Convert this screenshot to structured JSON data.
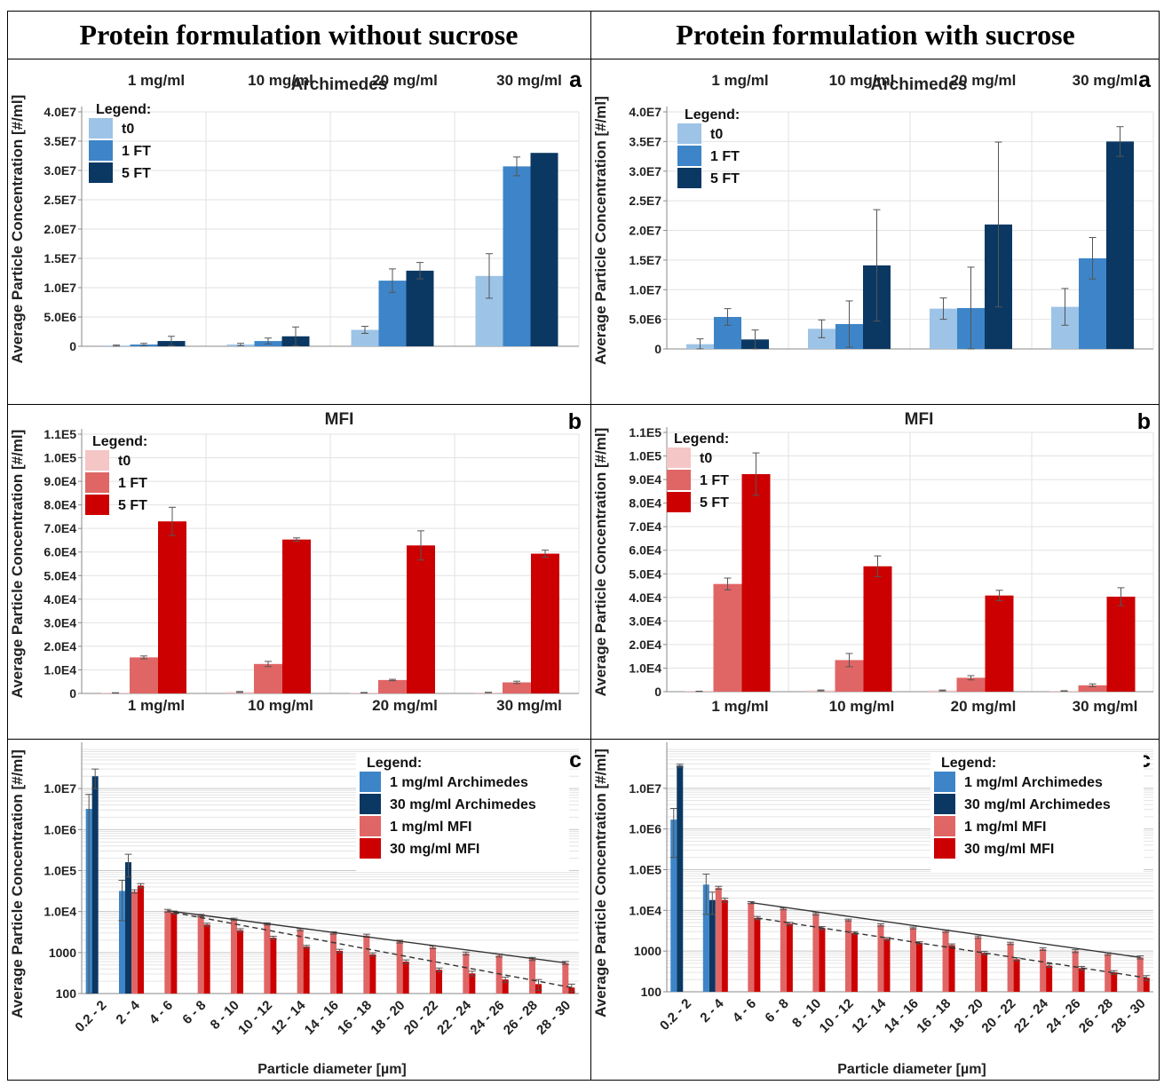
{
  "headers": {
    "left": "Protein formulation without sucrose",
    "right": "Protein formulation with sucrose"
  },
  "colors": {
    "arch_t0": "#9dc3e6",
    "arch_1ft": "#3d85c8",
    "arch_5ft": "#0b3863",
    "mfi_t0": "#f4c6c6",
    "mfi_1ft": "#e06666",
    "mfi_5ft": "#cc0000"
  },
  "chart_data": [
    {
      "id": "left-a",
      "type": "bar",
      "letter": "a",
      "title": "Archimedes",
      "ylabel": "Average Particle Concentration [#/ml]",
      "xlabel": "",
      "ylim": [
        0,
        40000000
      ],
      "scale": "linear",
      "yticks": [
        0,
        5000000,
        10000000,
        15000000,
        20000000,
        25000000,
        30000000,
        35000000,
        40000000
      ],
      "yticklabels": [
        "0",
        "5.0E6",
        "1.0E7",
        "1.5E7",
        "2.0E7",
        "2.5E7",
        "3.0E7",
        "3.5E7",
        "4.0E7"
      ],
      "categories": [
        "1 mg/ml",
        "10 mg/ml",
        "20 mg/ml",
        "30 mg/ml"
      ],
      "legend_title": "Legend:",
      "series": [
        {
          "name": "t0",
          "color": "#9dc3e6",
          "values": [
            100000,
            300000,
            2800000,
            12000000
          ],
          "errors": [
            100000,
            200000,
            600000,
            3800000
          ]
        },
        {
          "name": "1 FT",
          "color": "#3d85c8",
          "values": [
            300000,
            900000,
            11200000,
            30700000
          ],
          "errors": [
            200000,
            500000,
            2000000,
            1600000
          ]
        },
        {
          "name": "5 FT",
          "color": "#0b3863",
          "values": [
            900000,
            1700000,
            12900000,
            33000000
          ],
          "errors": [
            800000,
            1600000,
            1400000,
            0
          ]
        }
      ]
    },
    {
      "id": "right-a",
      "type": "bar",
      "letter": "a",
      "title": "Archimedes",
      "ylabel": "Average Particle Concentration [#/ml]",
      "xlabel": "",
      "ylim": [
        0,
        40000000
      ],
      "scale": "linear",
      "yticks": [
        0,
        5000000,
        10000000,
        15000000,
        20000000,
        25000000,
        30000000,
        35000000,
        40000000
      ],
      "yticklabels": [
        "0",
        "5.0E6",
        "1.0E7",
        "1.5E7",
        "2.0E7",
        "2.5E7",
        "3.0E7",
        "3.5E7",
        "4.0E7"
      ],
      "categories": [
        "1 mg/ml",
        "10 mg/ml",
        "20 mg/ml",
        "30 mg/ml"
      ],
      "legend_title": "Legend:",
      "series": [
        {
          "name": "t0",
          "color": "#9dc3e6",
          "values": [
            800000,
            3400000,
            6800000,
            7100000
          ],
          "errors": [
            900000,
            1500000,
            1800000,
            3100000
          ]
        },
        {
          "name": "1 FT",
          "color": "#3d85c8",
          "values": [
            5400000,
            4200000,
            6900000,
            15300000
          ],
          "errors": [
            1400000,
            3900000,
            6900000,
            3500000
          ]
        },
        {
          "name": "5 FT",
          "color": "#0b3863",
          "values": [
            1600000,
            14100000,
            21000000,
            35000000
          ],
          "errors": [
            1600000,
            9400000,
            13900000,
            2500000
          ]
        }
      ]
    },
    {
      "id": "left-b",
      "type": "bar",
      "letter": "b",
      "title": "MFI",
      "ylabel": "Average Particle Concentration [#/ml]",
      "xlabel": "",
      "ylim": [
        0,
        110000
      ],
      "scale": "linear",
      "yticks": [
        0,
        10000,
        20000,
        30000,
        40000,
        50000,
        60000,
        70000,
        80000,
        90000,
        100000,
        110000
      ],
      "yticklabels": [
        "0",
        "1.0E4",
        "2.0E4",
        "3.0E4",
        "4.0E4",
        "5.0E4",
        "6.0E4",
        "7.0E4",
        "8.0E4",
        "9.0E4",
        "1.0E5",
        "1.1E5"
      ],
      "categories": [
        "1 mg/ml",
        "10 mg/ml",
        "20 mg/ml",
        "30 mg/ml"
      ],
      "legend_title": "Legend:",
      "series": [
        {
          "name": "t0",
          "color": "#f4c6c6",
          "values": [
            200,
            600,
            300,
            400
          ],
          "errors": [
            100,
            200,
            100,
            100
          ]
        },
        {
          "name": "1 FT",
          "color": "#e06666",
          "values": [
            15300,
            12500,
            5700,
            4700
          ],
          "errors": [
            600,
            1100,
            300,
            500
          ]
        },
        {
          "name": "5 FT",
          "color": "#cc0000",
          "values": [
            73000,
            65300,
            62800,
            59300
          ],
          "errors": [
            6000,
            700,
            6200,
            1500
          ]
        }
      ]
    },
    {
      "id": "right-b",
      "type": "bar",
      "letter": "b",
      "title": "MFI",
      "ylabel": "Average Particle Concentration [#/ml]",
      "xlabel": "",
      "ylim": [
        0,
        110000
      ],
      "scale": "linear",
      "yticks": [
        0,
        10000,
        20000,
        30000,
        40000,
        50000,
        60000,
        70000,
        80000,
        90000,
        100000,
        110000
      ],
      "yticklabels": [
        "0",
        "1.0E4",
        "2.0E4",
        "3.0E4",
        "4.0E4",
        "5.0E4",
        "6.0E4",
        "7.0E4",
        "8.0E4",
        "9.0E4",
        "1.0E5",
        "1.1E5"
      ],
      "categories": [
        "1 mg/ml",
        "10 mg/ml",
        "20 mg/ml",
        "30 mg/ml"
      ],
      "legend_title": "Legend:",
      "series": [
        {
          "name": "t0",
          "color": "#f4c6c6",
          "values": [
            100,
            500,
            500,
            300
          ],
          "errors": [
            100,
            200,
            200,
            100
          ]
        },
        {
          "name": "1 FT",
          "color": "#e06666",
          "values": [
            45700,
            13400,
            5900,
            2700
          ],
          "errors": [
            2500,
            2800,
            900,
            600
          ]
        },
        {
          "name": "5 FT",
          "color": "#cc0000",
          "values": [
            92300,
            53200,
            40800,
            40300
          ],
          "errors": [
            9000,
            4400,
            2200,
            3800
          ]
        }
      ]
    },
    {
      "id": "left-c",
      "type": "bar",
      "letter": "c",
      "title": "",
      "ylabel": "Average Particle Concentration [#/ml]",
      "xlabel": "Particle diameter [µm]",
      "ylim": [
        100,
        100000000
      ],
      "scale": "log",
      "yticks": [
        100,
        1000,
        10000,
        100000,
        1000000,
        10000000
      ],
      "yticklabels": [
        "100",
        "1000",
        "1.0E4",
        "1.0E5",
        "1.0E6",
        "1.0E7"
      ],
      "categories": [
        "0.2 - 2",
        "2 - 4",
        "4 - 6",
        "6 - 8",
        "8 - 10",
        "10 - 12",
        "12 - 14",
        "14 - 16",
        "16 - 18",
        "18 - 20",
        "20 - 22",
        "22 - 24",
        "24 - 26",
        "26 - 28",
        "28 - 30"
      ],
      "legend_title": "Legend:",
      "series": [
        {
          "name": "1 mg/ml Archimedes",
          "color": "#3d85c8",
          "values": [
            3200000,
            32000,
            null,
            null,
            null,
            null,
            null,
            null,
            null,
            null,
            null,
            null,
            null,
            null,
            null
          ],
          "errors": [
            4000000,
            26000,
            null,
            null,
            null,
            null,
            null,
            null,
            null,
            null,
            null,
            null,
            null,
            null,
            null
          ]
        },
        {
          "name": "30 mg/ml Archimedes",
          "color": "#0b3863",
          "values": [
            20000000,
            160000,
            null,
            null,
            null,
            null,
            null,
            null,
            null,
            null,
            null,
            null,
            null,
            null,
            null
          ],
          "errors": [
            10000000,
            90000,
            null,
            null,
            null,
            null,
            null,
            null,
            null,
            null,
            null,
            null,
            null,
            null,
            null
          ]
        },
        {
          "name": "1 mg/ml MFI",
          "color": "#e06666",
          "values": [
            null,
            31000,
            10500,
            8000,
            6500,
            5000,
            3600,
            3000,
            2600,
            1850,
            1350,
            950,
            850,
            700,
            560
          ],
          "errors": [
            null,
            3000,
            800,
            500,
            400,
            300,
            200,
            200,
            200,
            150,
            100,
            80,
            70,
            60,
            50
          ]
        },
        {
          "name": "30 mg/ml MFI",
          "color": "#cc0000",
          "values": [
            null,
            43000,
            9500,
            4800,
            3500,
            2300,
            1400,
            1100,
            900,
            600,
            380,
            310,
            220,
            170,
            140
          ],
          "errors": [
            null,
            5000,
            800,
            400,
            300,
            200,
            100,
            100,
            80,
            60,
            40,
            40,
            30,
            50,
            30
          ]
        }
      ],
      "trendlines": [
        {
          "series": "1 mg/ml MFI",
          "style": "solid",
          "from": [
            2,
            10500
          ],
          "to": [
            14,
            560
          ]
        },
        {
          "series": "30 mg/ml MFI",
          "style": "dashed",
          "from": [
            2,
            9500
          ],
          "to": [
            14,
            140
          ]
        }
      ]
    },
    {
      "id": "right-c",
      "type": "bar",
      "letter": "c",
      "title": "",
      "ylabel": "Average Particle Concentration [#/ml]",
      "xlabel": "Particle diameter [µm]",
      "ylim": [
        100,
        100000000
      ],
      "scale": "log",
      "yticks": [
        100,
        1000,
        10000,
        100000,
        1000000,
        10000000
      ],
      "yticklabels": [
        "100",
        "1000",
        "1.0E4",
        "1.0E5",
        "1.0E6",
        "1.0E7"
      ],
      "categories": [
        "0.2 - 2",
        "2 - 4",
        "4 - 6",
        "6 - 8",
        "8 - 10",
        "10 - 12",
        "12 - 14",
        "14 - 16",
        "16 - 18",
        "18 - 20",
        "20 - 22",
        "22 - 24",
        "24 - 26",
        "26 - 28",
        "28 - 30"
      ],
      "legend_title": "Legend:",
      "series": [
        {
          "name": "1 mg/ml Archimedes",
          "color": "#3d85c8",
          "values": [
            1700000,
            43000,
            null,
            null,
            null,
            null,
            null,
            null,
            null,
            null,
            null,
            null,
            null,
            null,
            null
          ],
          "errors": [
            1500000,
            35000,
            null,
            null,
            null,
            null,
            null,
            null,
            null,
            null,
            null,
            null,
            null,
            null,
            null
          ]
        },
        {
          "name": "30 mg/ml Archimedes",
          "color": "#0b3863",
          "values": [
            36000000,
            18000,
            null,
            null,
            null,
            null,
            null,
            null,
            null,
            null,
            null,
            null,
            null,
            null,
            null
          ],
          "errors": [
            3000000,
            10000,
            null,
            null,
            null,
            null,
            null,
            null,
            null,
            null,
            null,
            null,
            null,
            null,
            null
          ]
        },
        {
          "name": "1 mg/ml MFI",
          "color": "#e06666",
          "values": [
            null,
            36000,
            15500,
            11000,
            8200,
            5800,
            4400,
            3700,
            3100,
            2200,
            1550,
            1120,
            1000,
            850,
            700
          ],
          "errors": [
            null,
            3000,
            900,
            600,
            500,
            300,
            300,
            200,
            200,
            150,
            100,
            80,
            80,
            60,
            60
          ]
        },
        {
          "name": "30 mg/ml MFI",
          "color": "#cc0000",
          "values": [
            null,
            18000,
            6500,
            4700,
            3700,
            2800,
            2000,
            1600,
            1400,
            900,
            630,
            440,
            380,
            300,
            220
          ],
          "errors": [
            null,
            2000,
            600,
            400,
            300,
            200,
            150,
            100,
            100,
            80,
            50,
            40,
            40,
            30,
            30
          ]
        }
      ],
      "trendlines": [
        {
          "series": "1 mg/ml MFI",
          "style": "solid",
          "from": [
            2,
            15500
          ],
          "to": [
            14,
            700
          ]
        },
        {
          "series": "30 mg/ml MFI",
          "style": "dashed",
          "from": [
            2,
            6500
          ],
          "to": [
            14,
            220
          ]
        }
      ]
    }
  ]
}
